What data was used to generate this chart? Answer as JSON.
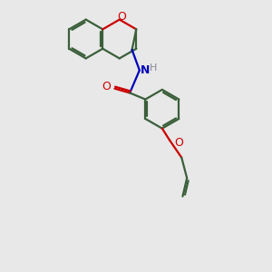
{
  "bg_color": "#e8e8e8",
  "bond_color": "#3a5f3a",
  "oxygen_color": "#cc0000",
  "nitrogen_color": "#0000bb",
  "line_width": 1.6,
  "dbo": 0.035,
  "xlim": [
    -0.1,
    2.8
  ],
  "ylim": [
    -2.8,
    2.2
  ],
  "figsize": [
    3.0,
    3.0
  ],
  "dpi": 100
}
